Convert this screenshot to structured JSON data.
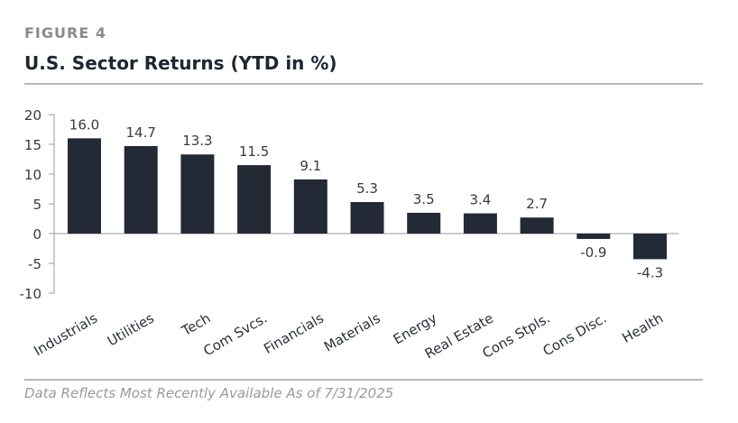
{
  "header": {
    "figure_label": "FIGURE 4",
    "title": "U.S. Sector Returns (YTD in %)"
  },
  "footer": {
    "note": "Data Reflects Most Recently Available As of 7/31/2025"
  },
  "colors": {
    "bar": "#232a36",
    "axis": "#9a9a9a",
    "rule": "#b9b9b9"
  },
  "chart_data": {
    "type": "bar",
    "title": "U.S. Sector Returns (YTD in %)",
    "categories": [
      "Industrials",
      "Utilities",
      "Tech",
      "Com Svcs.",
      "Financials",
      "Materials",
      "Energy",
      "Real Estate",
      "Cons Stpls.",
      "Cons Disc.",
      "Health"
    ],
    "values": [
      16.0,
      14.7,
      13.3,
      11.5,
      9.1,
      5.3,
      3.5,
      3.4,
      2.7,
      -0.9,
      -4.3
    ],
    "value_labels": [
      "16.0",
      "14.7",
      "13.3",
      "11.5",
      "9.1",
      "5.3",
      "3.5",
      "3.4",
      "2.7",
      "-0.9",
      "-4.3"
    ],
    "y_ticks": [
      20,
      15,
      10,
      5,
      0,
      -5,
      -10
    ],
    "ylim": [
      -10,
      20
    ],
    "xlabel": "",
    "ylabel": "",
    "grid": false,
    "legend": "none"
  }
}
